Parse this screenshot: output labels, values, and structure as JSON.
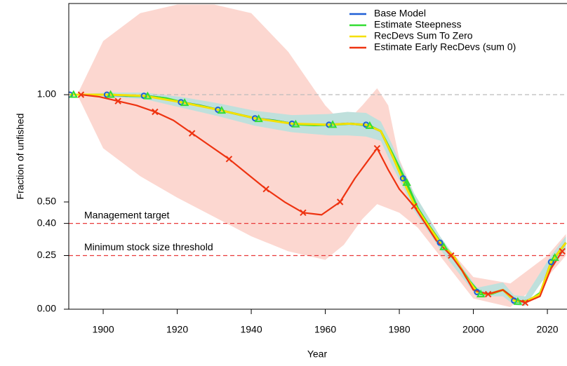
{
  "chart_data": {
    "type": "line",
    "xlabel": "Year",
    "ylabel": "Fraction of unfished",
    "xlim": [
      1890.7,
      2025.3
    ],
    "ylim": [
      0,
      1.425
    ],
    "xticks": [
      1900,
      1920,
      1940,
      1960,
      1980,
      2000,
      2020
    ],
    "yticks": [
      {
        "value": 0,
        "label": "0.00"
      },
      {
        "value": 0.25,
        "label": "0.25"
      },
      {
        "value": 0.4,
        "label": "0.40"
      },
      {
        "value": 0.5,
        "label": "0.50"
      },
      {
        "value": 1,
        "label": "1.00"
      }
    ],
    "legend": "upper right",
    "hlines": [
      {
        "value": 1,
        "color": "#bbbbbb"
      },
      {
        "value": 0.4,
        "color": "#e83a3a",
        "label": "Management target"
      },
      {
        "value": 0.25,
        "color": "#e83a3a",
        "label": "Minimum stock size threshold"
      }
    ],
    "bands": [
      {
        "color": "#fcd7d0",
        "x": [
          1893,
          1900,
          1910,
          1920,
          1930,
          1940,
          1950,
          1960,
          1965,
          1970,
          1974,
          1977,
          1980,
          1985,
          1990,
          2000,
          2010,
          2020,
          2025
        ],
        "upper": [
          1.0,
          1.25,
          1.38,
          1.42,
          1.42,
          1.38,
          1.2,
          0.95,
          0.86,
          0.95,
          1.03,
          0.95,
          0.7,
          0.5,
          0.35,
          0.15,
          0.12,
          0.25,
          0.35
        ],
        "lower": [
          1.0,
          0.75,
          0.62,
          0.52,
          0.43,
          0.34,
          0.27,
          0.23,
          0.3,
          0.42,
          0.49,
          0.47,
          0.45,
          0.38,
          0.27,
          0.05,
          0.01,
          0.15,
          0.25
        ]
      },
      {
        "color": "#bfe0dc",
        "x": [
          1891,
          1901,
          1911,
          1921,
          1931,
          1941,
          1951,
          1961,
          1966,
          1971,
          1975,
          1978,
          1981,
          1984,
          1991,
          2001,
          2008,
          2011,
          2014,
          2021,
          2025
        ],
        "upper": [
          1.0,
          1.01,
          1.01,
          0.99,
          0.96,
          0.925,
          0.905,
          0.91,
          0.92,
          0.915,
          0.875,
          0.77,
          0.65,
          0.54,
          0.34,
          0.1,
          0.125,
          0.065,
          0.06,
          0.25,
          0.34
        ],
        "lower": [
          1.0,
          0.99,
          0.98,
          0.94,
          0.9,
          0.855,
          0.825,
          0.81,
          0.81,
          0.805,
          0.785,
          0.67,
          0.57,
          0.46,
          0.28,
          0.06,
          0.06,
          0.02,
          0.015,
          0.19,
          0.28
        ]
      }
    ],
    "series": [
      {
        "name": "Base Model",
        "color": "#1f5fd6",
        "marker": "circle",
        "x": [
          1891,
          1896,
          1901,
          1906,
          1911,
          1916,
          1921,
          1926,
          1931,
          1936,
          1941,
          1946,
          1951,
          1956,
          1961,
          1966,
          1971,
          1975,
          1978,
          1981,
          1984,
          1987,
          1991,
          1995,
          1998,
          2001,
          2004,
          2008,
          2011,
          2014,
          2018,
          2021,
          2025
        ],
        "values": [
          1.0,
          1.0,
          1.0,
          0.995,
          0.995,
          0.985,
          0.965,
          0.95,
          0.93,
          0.91,
          0.89,
          0.88,
          0.865,
          0.86,
          0.86,
          0.865,
          0.86,
          0.83,
          0.72,
          0.61,
          0.5,
          0.41,
          0.31,
          0.24,
          0.15,
          0.08,
          0.07,
          0.09,
          0.04,
          0.035,
          0.07,
          0.22,
          0.31
        ]
      },
      {
        "name": "Estimate Steepness",
        "color": "#33dd33",
        "marker": "triangle",
        "x": [
          1892,
          1897,
          1902,
          1907,
          1912,
          1917,
          1922,
          1927,
          1932,
          1937,
          1942,
          1947,
          1952,
          1957,
          1962,
          1967,
          1972,
          1975,
          1978,
          1982,
          1985,
          1988,
          1992,
          1995,
          1999,
          2002,
          2005,
          2008,
          2012,
          2015,
          2018,
          2022,
          2025
        ],
        "values": [
          1.0,
          1.0,
          1.0,
          0.995,
          0.993,
          0.983,
          0.962,
          0.946,
          0.926,
          0.906,
          0.887,
          0.877,
          0.862,
          0.858,
          0.86,
          0.865,
          0.855,
          0.83,
          0.73,
          0.59,
          0.47,
          0.39,
          0.29,
          0.23,
          0.13,
          0.07,
          0.072,
          0.09,
          0.035,
          0.04,
          0.075,
          0.24,
          0.31
        ]
      },
      {
        "name": "RecDevs Sum To Zero",
        "color": "#f5e000",
        "marker": "none",
        "x": [
          1891,
          1901,
          1911,
          1921,
          1931,
          1941,
          1951,
          1961,
          1966,
          1971,
          1975,
          1978,
          1981,
          1984,
          1987,
          1991,
          1995,
          1998,
          2001,
          2004,
          2008,
          2011,
          2014,
          2018,
          2021,
          2025
        ],
        "values": [
          1.0,
          1.0,
          0.995,
          0.965,
          0.93,
          0.89,
          0.865,
          0.86,
          0.865,
          0.86,
          0.83,
          0.72,
          0.6,
          0.49,
          0.41,
          0.31,
          0.24,
          0.15,
          0.08,
          0.07,
          0.09,
          0.04,
          0.035,
          0.07,
          0.22,
          0.31
        ]
      },
      {
        "name": "Estimate Early RecDevs (sum 0)",
        "color": "#ee3311",
        "marker": "x",
        "x": [
          1894,
          1899,
          1904,
          1909,
          1914,
          1919,
          1924,
          1929,
          1934,
          1939,
          1944,
          1949,
          1954,
          1959,
          1964,
          1968,
          1971,
          1974,
          1977,
          1980,
          1984,
          1987,
          1990,
          1994,
          1997,
          2000,
          2004,
          2008,
          2011,
          2014,
          2018,
          2021,
          2024
        ],
        "values": [
          1.0,
          0.99,
          0.97,
          0.95,
          0.92,
          0.88,
          0.82,
          0.76,
          0.7,
          0.63,
          0.56,
          0.5,
          0.45,
          0.44,
          0.5,
          0.61,
          0.68,
          0.75,
          0.65,
          0.56,
          0.48,
          0.4,
          0.32,
          0.25,
          0.18,
          0.09,
          0.07,
          0.09,
          0.05,
          0.03,
          0.06,
          0.19,
          0.27
        ]
      }
    ]
  }
}
